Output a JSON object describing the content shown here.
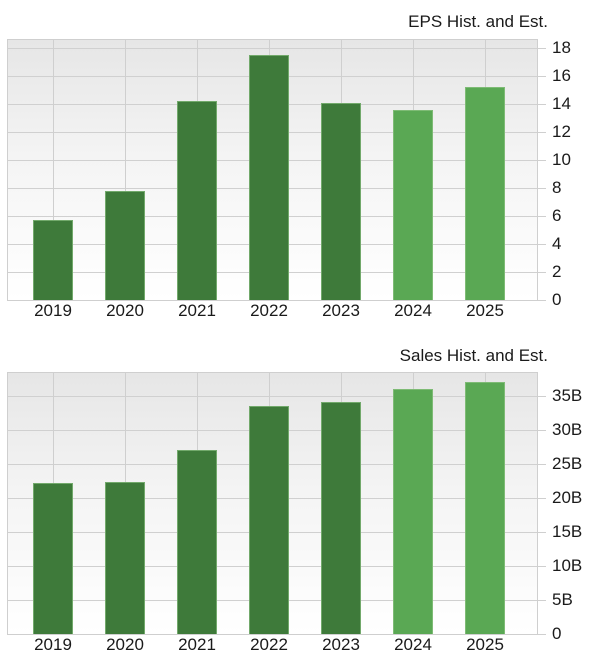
{
  "colors": {
    "historical": "#3e7a3a",
    "estimate": "#5aa854",
    "grid": "#d0d0d0"
  },
  "chart_data": [
    {
      "type": "bar",
      "title": "EPS Hist. and Est.",
      "categories": [
        "2019",
        "2020",
        "2021",
        "2022",
        "2023",
        "2024",
        "2025"
      ],
      "values": [
        5.7,
        7.8,
        14.2,
        17.5,
        14.1,
        13.6,
        15.2
      ],
      "kinds": [
        "hist",
        "hist",
        "hist",
        "hist",
        "hist",
        "est",
        "est"
      ],
      "xlabel": "",
      "ylabel": "",
      "ylim": [
        0,
        18
      ],
      "yticks": [
        "0",
        "2",
        "4",
        "6",
        "8",
        "10",
        "12",
        "14",
        "16",
        "18"
      ],
      "ytick_values": [
        0,
        2,
        4,
        6,
        8,
        10,
        12,
        14,
        16,
        18
      ],
      "grid": true,
      "y_axis_position": "right",
      "legend": "none"
    },
    {
      "type": "bar",
      "title": "Sales Hist. and Est.",
      "categories": [
        "2019",
        "2020",
        "2021",
        "2022",
        "2023",
        "2024",
        "2025"
      ],
      "values": [
        22.2,
        22.4,
        27.1,
        33.5,
        34.1,
        36.0,
        37.1
      ],
      "value_unit": "B",
      "kinds": [
        "hist",
        "hist",
        "hist",
        "hist",
        "hist",
        "est",
        "est"
      ],
      "xlabel": "",
      "ylabel": "",
      "ylim": [
        0,
        38
      ],
      "yticks": [
        "0",
        "5B",
        "10B",
        "15B",
        "20B",
        "25B",
        "30B",
        "35B"
      ],
      "ytick_values": [
        0,
        5,
        10,
        15,
        20,
        25,
        30,
        35
      ],
      "grid": true,
      "y_axis_position": "right",
      "legend": "none"
    }
  ]
}
